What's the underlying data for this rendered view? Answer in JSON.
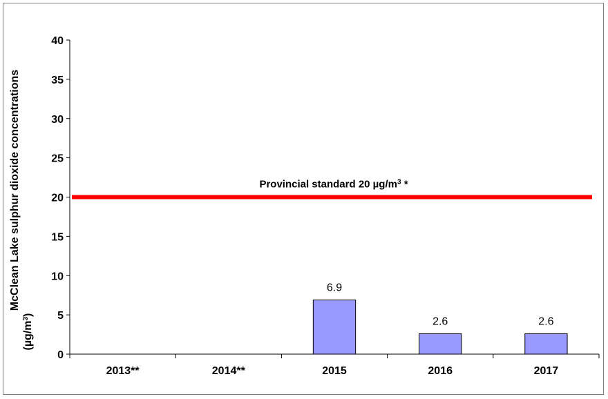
{
  "chart_data": {
    "type": "bar",
    "categories": [
      "2013**",
      "2014**",
      "2015",
      "2016",
      "2017"
    ],
    "values": [
      null,
      null,
      6.9,
      2.6,
      2.6
    ],
    "data_labels": [
      "",
      "",
      "6.9",
      "2.6",
      "2.6"
    ],
    "ylabel_line1": "McClean Lake sulphur dioxide concentrations",
    "ylabel_line2_prefix": "(µg/m",
    "ylabel_line2_sup": "3",
    "ylabel_line2_suffix": ")",
    "ylim": [
      0,
      40
    ],
    "yticks": [
      0,
      5,
      10,
      15,
      20,
      25,
      30,
      35,
      40
    ],
    "grid": false,
    "bar_color": "#9999ff",
    "reference_line": {
      "value": 20,
      "color": "#ff0000",
      "label_prefix": "Provincial standard 20 µg/m",
      "label_sup": "3",
      "label_suffix": " *"
    }
  }
}
